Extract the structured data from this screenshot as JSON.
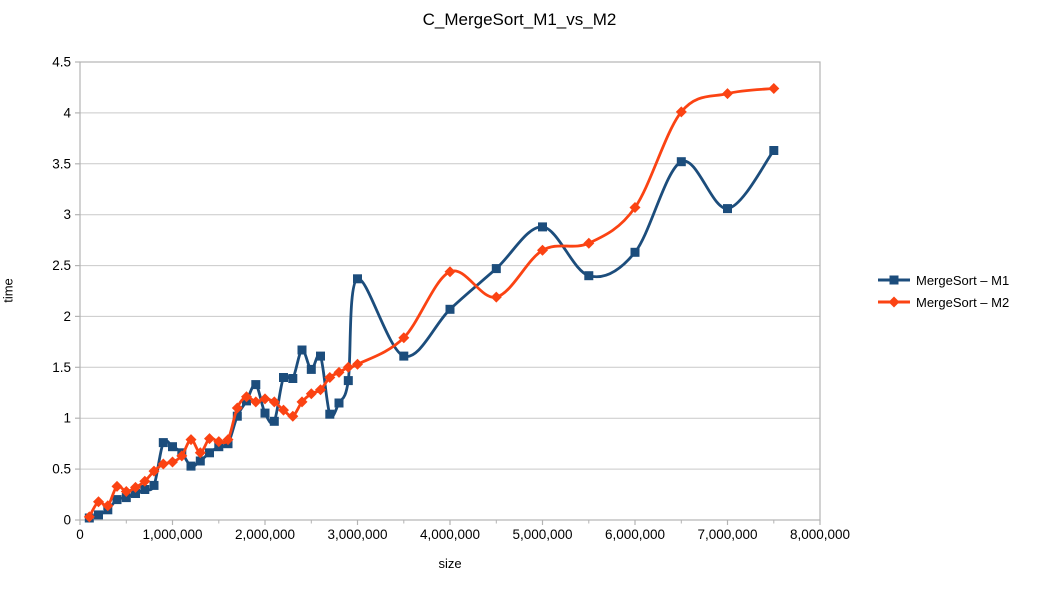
{
  "chart": {
    "title": "C_MergeSort_M1_vs_M2",
    "x_axis_title": "size",
    "y_axis_title": "time"
  },
  "legend": {
    "position": "right",
    "items": [
      {
        "label": "MergeSort – M1",
        "marker": "square-marker-icon"
      },
      {
        "label": "MergeSort – M2",
        "marker": "diamond-marker-icon"
      }
    ]
  },
  "colors": {
    "series1": "#1C4D7C",
    "series2": "#FB4313",
    "gridline": "#C9C9C9",
    "plot_border": "#B3B3B3",
    "text": "#000000"
  },
  "chart_data": {
    "type": "line",
    "line_style": "smooth",
    "title": "C_MergeSort_M1_vs_M2",
    "xlabel": "size",
    "ylabel": "time",
    "xlim": [
      0,
      8000000
    ],
    "ylim": [
      0,
      4.5
    ],
    "grid": "horizontal",
    "legend_position": "right",
    "x_tick_values": [
      0,
      1000000,
      2000000,
      3000000,
      4000000,
      5000000,
      6000000,
      7000000,
      8000000
    ],
    "x_tick_labels": [
      "0",
      "1,000,000",
      "2,000,000",
      "3,000,000",
      "4,000,000",
      "5,000,000",
      "6,000,000",
      "7,000,000",
      "8,000,000"
    ],
    "x_minor_tick_step": 500000,
    "y_tick_values": [
      0,
      0.5,
      1,
      1.5,
      2,
      2.5,
      3,
      3.5,
      4,
      4.5
    ],
    "y_tick_labels": [
      "0",
      "0.5",
      "1",
      "1.5",
      "2",
      "2.5",
      "3",
      "3.5",
      "4",
      "4.5"
    ],
    "x": [
      100000,
      200000,
      300000,
      400000,
      500000,
      600000,
      700000,
      800000,
      900000,
      1000000,
      1100000,
      1200000,
      1300000,
      1400000,
      1500000,
      1600000,
      1700000,
      1800000,
      1900000,
      2000000,
      2100000,
      2200000,
      2300000,
      2400000,
      2500000,
      2600000,
      2700000,
      2800000,
      2900000,
      3000000,
      3500000,
      4000000,
      4500000,
      5000000,
      5500000,
      6000000,
      6500000,
      7000000,
      7500000
    ],
    "series": [
      {
        "name": "MergeSort – M1",
        "color": "#1C4D7C",
        "marker": "square",
        "values": [
          0.02,
          0.05,
          0.1,
          0.2,
          0.22,
          0.26,
          0.3,
          0.34,
          0.76,
          0.72,
          0.66,
          0.53,
          0.58,
          0.66,
          0.72,
          0.75,
          1.02,
          1.17,
          1.33,
          1.05,
          0.97,
          1.4,
          1.39,
          1.67,
          1.48,
          1.61,
          1.04,
          1.15,
          1.37,
          2.37,
          1.61,
          2.07,
          2.47,
          2.88,
          2.4,
          2.63,
          3.52,
          3.06,
          3.63
        ]
      },
      {
        "name": "MergeSort – M2",
        "color": "#FB4313",
        "marker": "diamond",
        "values": [
          0.03,
          0.18,
          0.14,
          0.33,
          0.28,
          0.32,
          0.38,
          0.48,
          0.55,
          0.57,
          0.63,
          0.79,
          0.66,
          0.8,
          0.77,
          0.79,
          1.1,
          1.21,
          1.16,
          1.19,
          1.16,
          1.08,
          1.02,
          1.16,
          1.24,
          1.28,
          1.4,
          1.45,
          1.5,
          1.53,
          1.79,
          2.44,
          2.19,
          2.65,
          2.72,
          3.07,
          4.01,
          4.19,
          4.24
        ]
      }
    ]
  }
}
